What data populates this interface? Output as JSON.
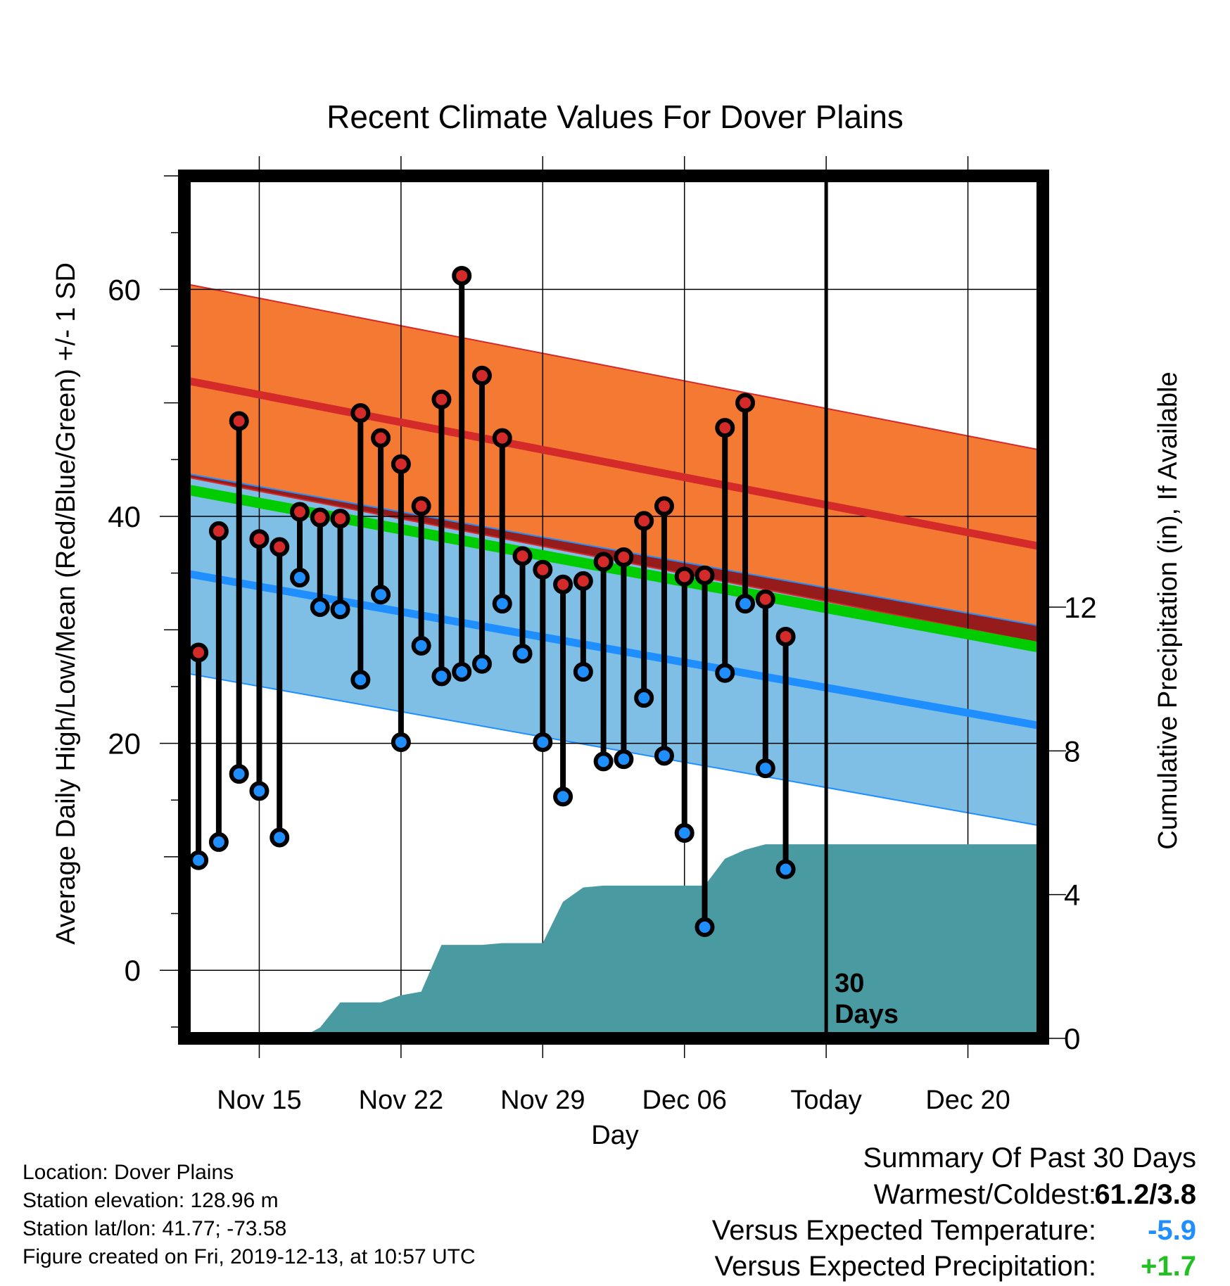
{
  "chart_data": {
    "type": "range-dot-bars-with-bands",
    "title": "Recent Climate Values For Dover Plains",
    "xlabel": "Day",
    "ylabel_left": "Average Daily High/Low/Mean (Red/Blue/Green) +/- 1 SD",
    "ylabel_right": "Cumulative Precipitation (in), If Available",
    "x_ticks": [
      "Nov 15",
      "Nov 22",
      "Nov 29",
      "Dec 06",
      "Today",
      "Dec 20"
    ],
    "x_tick_days": [
      15,
      22,
      29,
      36,
      43,
      50
    ],
    "xlim": [
      11.3,
      53.7
    ],
    "ylim_left": [
      -6,
      70
    ],
    "yticks_left": [
      0,
      20,
      40,
      60
    ],
    "ylim_right": [
      0,
      24
    ],
    "yticks_right": [
      0,
      4,
      8,
      12
    ],
    "today_label": "30\nDays",
    "today_day": 43,
    "series": [
      {
        "name": "Daily High",
        "color": "#d62728"
      },
      {
        "name": "Daily Low",
        "color": "#1f8fff"
      }
    ],
    "days": [
      12,
      13,
      14,
      15,
      16,
      17,
      18,
      19,
      20,
      21,
      22,
      23,
      24,
      25,
      26,
      27,
      28,
      29,
      30,
      31,
      32,
      33,
      34,
      35,
      36,
      37,
      38,
      39,
      40,
      41
    ],
    "highs": [
      28.0,
      38.7,
      48.4,
      38.0,
      37.3,
      40.4,
      39.9,
      39.8,
      49.1,
      46.9,
      44.6,
      40.9,
      50.3,
      61.2,
      52.4,
      46.9,
      36.5,
      35.3,
      34.0,
      34.3,
      36.0,
      36.4,
      39.6,
      40.9,
      34.7,
      34.8,
      47.8,
      50.0,
      32.7,
      29.4
    ],
    "lows": [
      9.7,
      11.3,
      17.3,
      15.8,
      11.7,
      34.6,
      32.0,
      31.8,
      25.6,
      33.1,
      20.1,
      28.6,
      25.9,
      26.3,
      27.0,
      32.3,
      27.9,
      20.1,
      15.3,
      26.3,
      18.4,
      18.6,
      24.0,
      18.9,
      12.1,
      3.8,
      26.2,
      32.3,
      17.8,
      8.9
    ],
    "normal_high": {
      "start": 52.0,
      "end": 37.3
    },
    "normal_high_sd": 8.5,
    "normal_low": {
      "start": 35.0,
      "end": 21.5
    },
    "normal_low_sd": 8.8,
    "normal_mean": {
      "start": 42.4,
      "end": 28.4
    },
    "precip_days": [
      12,
      15,
      16,
      17,
      18,
      19,
      20,
      21,
      22,
      23,
      24,
      25,
      26,
      27,
      28,
      29,
      30,
      31,
      32,
      33,
      34,
      35,
      36,
      37,
      38,
      39,
      40,
      41,
      42,
      43,
      53.7
    ],
    "precip_cum": [
      0,
      0,
      0,
      0,
      0.3,
      1.0,
      1.0,
      1.0,
      1.2,
      1.3,
      2.6,
      2.6,
      2.6,
      2.65,
      2.65,
      2.65,
      3.8,
      4.2,
      4.25,
      4.25,
      4.25,
      4.25,
      4.25,
      4.25,
      5.0,
      5.25,
      5.4,
      5.4,
      5.4,
      5.4,
      5.4
    ],
    "colors": {
      "high_band": "#f47a34",
      "high_line": "#d42a2a",
      "low_band": "#7fbfe6",
      "low_line": "#1f8fff",
      "mean_line": "#00cc00",
      "overlap_band": "#961b1b",
      "precip_fill": "#4a9aa2"
    }
  },
  "footer": {
    "location": "Location: Dover Plains",
    "elevation": "Station elevation: 128.96 m",
    "latlon": "Station lat/lon: 41.77; -73.58",
    "created": "Figure created on Fri, 2019-12-13, at 10:57 UTC"
  },
  "summary": {
    "title": "Summary Of Past 30 Days",
    "warm_cold_label": "Warmest/Coldest:",
    "warm_cold_value": "61.2/3.8",
    "temp_label": "Versus Expected Temperature:",
    "temp_value": "-5.9",
    "temp_color": "#1f8fff",
    "precip_label": "Versus Expected Precipitation:",
    "precip_value": "+1.7",
    "precip_color": "#22c022"
  }
}
